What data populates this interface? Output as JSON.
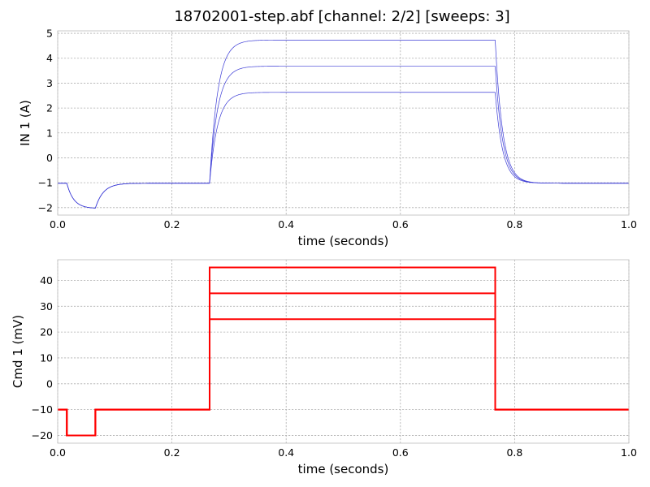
{
  "title": "18702001-step.abf [channel: 2/2] [sweeps: 3]",
  "chart_data": [
    {
      "type": "line",
      "xlabel": "time (seconds)",
      "ylabel": "IN 1 (A)",
      "xlim": [
        0,
        1.0
      ],
      "ylim": [
        -2.3,
        5.1
      ],
      "xticks": [
        0,
        0.2,
        0.4,
        0.6,
        0.8,
        1.0
      ],
      "xtick_labels": [
        "0.0",
        "0.2",
        "0.4",
        "0.6",
        "0.8",
        "1.0"
      ],
      "yticks": [
        -2,
        -1,
        0,
        1,
        2,
        3,
        4,
        5
      ],
      "ytick_labels": [
        "−2",
        "−1",
        "0",
        "1",
        "2",
        "3",
        "4",
        "5"
      ],
      "grid": true,
      "color": "#3b3bd6",
      "series": [
        {
          "values": {
            "baseline": -1.02,
            "dip_min": -2.02,
            "dip_start": 0.016,
            "dip_end": 0.066,
            "step_start": 0.266,
            "step_end": 0.766,
            "plateau": 2.63
          }
        },
        {
          "values": {
            "baseline": -1.02,
            "dip_min": -2.02,
            "dip_start": 0.016,
            "dip_end": 0.066,
            "step_start": 0.266,
            "step_end": 0.766,
            "plateau": 3.68
          }
        },
        {
          "values": {
            "baseline": -1.02,
            "dip_min": -2.02,
            "dip_start": 0.016,
            "dip_end": 0.066,
            "step_start": 0.266,
            "step_end": 0.766,
            "plateau": 4.73
          }
        }
      ]
    },
    {
      "type": "line",
      "xlabel": "time (seconds)",
      "ylabel": "Cmd 1 (mV)",
      "xlim": [
        0,
        1.0
      ],
      "ylim": [
        -23,
        48
      ],
      "xticks": [
        0,
        0.2,
        0.4,
        0.6,
        0.8,
        1.0
      ],
      "xtick_labels": [
        "0.0",
        "0.2",
        "0.4",
        "0.6",
        "0.8",
        "1.0"
      ],
      "yticks": [
        -20,
        -10,
        0,
        10,
        20,
        30,
        40
      ],
      "ytick_labels": [
        "−20",
        "−10",
        "0",
        "10",
        "20",
        "30",
        "40"
      ],
      "grid": true,
      "color": "#ff0000",
      "series": [
        {
          "points": [
            [
              0,
              -10
            ],
            [
              0.016,
              -10
            ],
            [
              0.016,
              -20
            ],
            [
              0.066,
              -20
            ],
            [
              0.066,
              -10
            ],
            [
              0.266,
              -10
            ],
            [
              0.266,
              25
            ],
            [
              0.766,
              25
            ],
            [
              0.766,
              -10
            ],
            [
              1.0,
              -10
            ]
          ]
        },
        {
          "points": [
            [
              0,
              -10
            ],
            [
              0.016,
              -10
            ],
            [
              0.016,
              -20
            ],
            [
              0.066,
              -20
            ],
            [
              0.066,
              -10
            ],
            [
              0.266,
              -10
            ],
            [
              0.266,
              35
            ],
            [
              0.766,
              35
            ],
            [
              0.766,
              -10
            ],
            [
              1.0,
              -10
            ]
          ]
        },
        {
          "points": [
            [
              0,
              -10
            ],
            [
              0.016,
              -10
            ],
            [
              0.016,
              -20
            ],
            [
              0.066,
              -20
            ],
            [
              0.066,
              -10
            ],
            [
              0.266,
              -10
            ],
            [
              0.266,
              45
            ],
            [
              0.766,
              45
            ],
            [
              0.766,
              -10
            ],
            [
              1.0,
              -10
            ]
          ]
        }
      ]
    }
  ]
}
